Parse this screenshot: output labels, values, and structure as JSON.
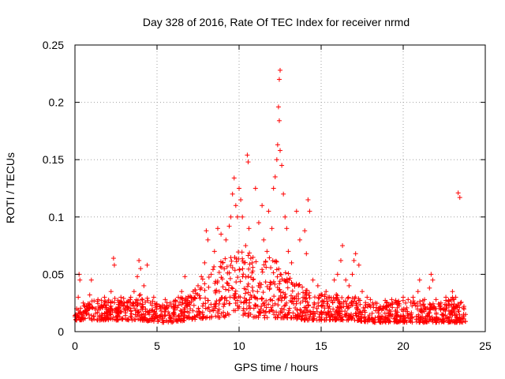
{
  "chart_data": {
    "type": "scatter",
    "title": "Day 328 of 2016, Rate Of TEC Index for receiver nrmd",
    "xlabel": "GPS time / hours",
    "ylabel": "ROTI / TECUs",
    "xlim": [
      0,
      25
    ],
    "ylim": [
      0,
      0.25
    ],
    "xticks": [
      {
        "value": 0,
        "label": "0"
      },
      {
        "value": 5,
        "label": "5"
      },
      {
        "value": 10,
        "label": "10"
      },
      {
        "value": 15,
        "label": "15"
      },
      {
        "value": 20,
        "label": "20"
      },
      {
        "value": 25,
        "label": "25"
      }
    ],
    "yticks": [
      {
        "value": 0,
        "label": "0"
      },
      {
        "value": 0.05,
        "label": "0.05"
      },
      {
        "value": 0.1,
        "label": "0.1"
      },
      {
        "value": 0.15,
        "label": "0.15"
      },
      {
        "value": 0.2,
        "label": "0.2"
      },
      {
        "value": 0.25,
        "label": "0.25"
      }
    ],
    "grid": true,
    "marker": "plus",
    "color": "#ff0000",
    "series": [
      {
        "points": [
          [
            0.0,
            0.013
          ],
          [
            0.1,
            0.02
          ],
          [
            0.2,
            0.03
          ],
          [
            0.25,
            0.05
          ],
          [
            0.3,
            0.045
          ],
          [
            0.5,
            0.025
          ],
          [
            0.7,
            0.018
          ],
          [
            0.9,
            0.032
          ],
          [
            1.0,
            0.045
          ],
          [
            1.2,
            0.02
          ],
          [
            1.4,
            0.028
          ],
          [
            1.6,
            0.022
          ],
          [
            1.8,
            0.03
          ],
          [
            2.0,
            0.018
          ],
          [
            2.2,
            0.035
          ],
          [
            2.35,
            0.064
          ],
          [
            2.4,
            0.058
          ],
          [
            2.6,
            0.02
          ],
          [
            2.8,
            0.03
          ],
          [
            3.0,
            0.025
          ],
          [
            3.2,
            0.022
          ],
          [
            3.4,
            0.03
          ],
          [
            3.6,
            0.035
          ],
          [
            3.8,
            0.048
          ],
          [
            3.9,
            0.062
          ],
          [
            4.0,
            0.055
          ],
          [
            4.2,
            0.04
          ],
          [
            4.4,
            0.058
          ],
          [
            4.6,
            0.025
          ],
          [
            4.8,
            0.03
          ],
          [
            5.0,
            0.022
          ],
          [
            5.2,
            0.02
          ],
          [
            5.5,
            0.028
          ],
          [
            5.8,
            0.025
          ],
          [
            6.0,
            0.022
          ],
          [
            6.3,
            0.03
          ],
          [
            6.5,
            0.035
          ],
          [
            6.7,
            0.048
          ],
          [
            7.0,
            0.025
          ],
          [
            7.2,
            0.035
          ],
          [
            7.5,
            0.04
          ],
          [
            7.7,
            0.048
          ],
          [
            7.9,
            0.06
          ],
          [
            8.0,
            0.088
          ],
          [
            8.1,
            0.08
          ],
          [
            8.3,
            0.05
          ],
          [
            8.5,
            0.07
          ],
          [
            8.7,
            0.09
          ],
          [
            8.9,
            0.085
          ],
          [
            9.0,
            0.06
          ],
          [
            9.2,
            0.08
          ],
          [
            9.4,
            0.092
          ],
          [
            9.5,
            0.1
          ],
          [
            9.6,
            0.12
          ],
          [
            9.7,
            0.134
          ],
          [
            9.8,
            0.11
          ],
          [
            9.9,
            0.1
          ],
          [
            10.0,
            0.125
          ],
          [
            10.1,
            0.115
          ],
          [
            10.2,
            0.1
          ],
          [
            10.3,
            0.06
          ],
          [
            10.4,
            0.075
          ],
          [
            10.5,
            0.154
          ],
          [
            10.55,
            0.148
          ],
          [
            10.6,
            0.09
          ],
          [
            10.8,
            0.06
          ],
          [
            11.0,
            0.125
          ],
          [
            11.2,
            0.095
          ],
          [
            11.4,
            0.11
          ],
          [
            11.5,
            0.08
          ],
          [
            11.7,
            0.07
          ],
          [
            11.8,
            0.105
          ],
          [
            12.0,
            0.09
          ],
          [
            12.1,
            0.125
          ],
          [
            12.2,
            0.135
          ],
          [
            12.3,
            0.15
          ],
          [
            12.35,
            0.163
          ],
          [
            12.4,
            0.196
          ],
          [
            12.45,
            0.22
          ],
          [
            12.5,
            0.228
          ],
          [
            12.45,
            0.184
          ],
          [
            12.5,
            0.158
          ],
          [
            12.6,
            0.145
          ],
          [
            12.7,
            0.12
          ],
          [
            12.8,
            0.1
          ],
          [
            12.9,
            0.09
          ],
          [
            13.0,
            0.07
          ],
          [
            13.2,
            0.06
          ],
          [
            13.5,
            0.105
          ],
          [
            13.7,
            0.08
          ],
          [
            14.0,
            0.088
          ],
          [
            14.1,
            0.068
          ],
          [
            14.2,
            0.115
          ],
          [
            14.3,
            0.105
          ],
          [
            14.5,
            0.045
          ],
          [
            14.8,
            0.04
          ],
          [
            15.0,
            0.032
          ],
          [
            15.3,
            0.035
          ],
          [
            15.5,
            0.03
          ],
          [
            15.8,
            0.045
          ],
          [
            16.0,
            0.05
          ],
          [
            16.2,
            0.062
          ],
          [
            16.3,
            0.075
          ],
          [
            16.5,
            0.045
          ],
          [
            16.7,
            0.04
          ],
          [
            16.9,
            0.05
          ],
          [
            17.0,
            0.062
          ],
          [
            17.1,
            0.068
          ],
          [
            17.3,
            0.058
          ],
          [
            17.5,
            0.035
          ],
          [
            17.8,
            0.03
          ],
          [
            18.0,
            0.028
          ],
          [
            18.3,
            0.025
          ],
          [
            18.6,
            0.022
          ],
          [
            19.0,
            0.025
          ],
          [
            19.3,
            0.028
          ],
          [
            19.6,
            0.025
          ],
          [
            20.0,
            0.03
          ],
          [
            20.3,
            0.028
          ],
          [
            20.6,
            0.03
          ],
          [
            20.9,
            0.035
          ],
          [
            21.0,
            0.045
          ],
          [
            21.3,
            0.028
          ],
          [
            21.6,
            0.038
          ],
          [
            21.7,
            0.05
          ],
          [
            21.8,
            0.045
          ],
          [
            22.0,
            0.028
          ],
          [
            22.3,
            0.025
          ],
          [
            22.6,
            0.03
          ],
          [
            22.9,
            0.028
          ],
          [
            23.0,
            0.035
          ],
          [
            23.2,
            0.03
          ],
          [
            23.35,
            0.121
          ],
          [
            23.45,
            0.117
          ],
          [
            23.5,
            0.025
          ],
          [
            23.7,
            0.022
          ],
          [
            23.8,
            0.015
          ]
        ]
      }
    ],
    "band_profile": [
      [
        0,
        0.01,
        0.02
      ],
      [
        1,
        0.01,
        0.022
      ],
      [
        2,
        0.01,
        0.024
      ],
      [
        3,
        0.01,
        0.024
      ],
      [
        4,
        0.01,
        0.026
      ],
      [
        5,
        0.008,
        0.02
      ],
      [
        6,
        0.008,
        0.022
      ],
      [
        7,
        0.01,
        0.026
      ],
      [
        8,
        0.012,
        0.04
      ],
      [
        9,
        0.012,
        0.05
      ],
      [
        10,
        0.015,
        0.058
      ],
      [
        11,
        0.012,
        0.05
      ],
      [
        12,
        0.012,
        0.05
      ],
      [
        13,
        0.012,
        0.04
      ],
      [
        14,
        0.01,
        0.03
      ],
      [
        15,
        0.01,
        0.026
      ],
      [
        16,
        0.01,
        0.026
      ],
      [
        17,
        0.01,
        0.025
      ],
      [
        18,
        0.008,
        0.02
      ],
      [
        19,
        0.008,
        0.022
      ],
      [
        20,
        0.008,
        0.022
      ],
      [
        21,
        0.008,
        0.022
      ],
      [
        22,
        0.008,
        0.02
      ],
      [
        23,
        0.008,
        0.024
      ],
      [
        23.8,
        0.008,
        0.02
      ]
    ]
  }
}
